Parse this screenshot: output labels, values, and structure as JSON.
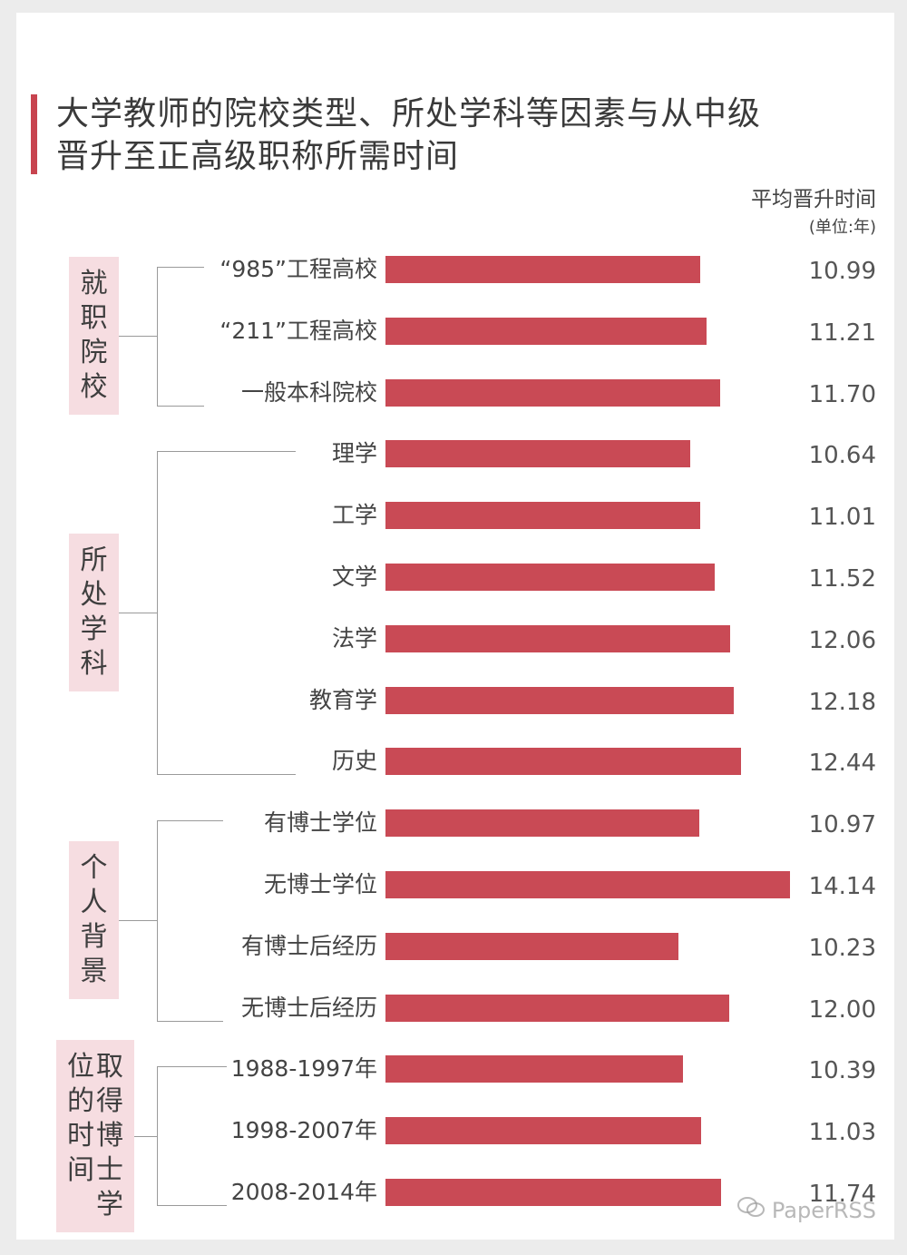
{
  "title_line1": "大学教师的院校类型、所处学科等因素与从中级",
  "title_line2": "晋升至正高级职称所需时间",
  "unit_line1": "平均晋升时间",
  "unit_line2": "(单位:年)",
  "watermark": "PaperRSS",
  "colors": {
    "bar": "#c94a55",
    "accent": "#c8444f",
    "group_bg": "#f6dde1"
  },
  "chart_data": {
    "type": "bar",
    "orientation": "horizontal",
    "title": "大学教师的院校类型、所处学科等因素与从中级晋升至正高级职称所需时间",
    "unit": "平均晋升时间 (单位:年)",
    "xlim": [
      0,
      15
    ],
    "groups": [
      {
        "name": "就职院校",
        "categories": [
          "“985”工程高校",
          "“211”工程高校",
          "一般本科院校"
        ],
        "values": [
          10.99,
          11.21,
          11.7
        ],
        "labels": [
          "10.99",
          "11.21",
          "11.70"
        ]
      },
      {
        "name": "所处学科",
        "categories": [
          "理学",
          "工学",
          "文学",
          "法学",
          "教育学",
          "历史"
        ],
        "values": [
          10.64,
          11.01,
          11.52,
          12.06,
          12.18,
          12.44
        ],
        "labels": [
          "10.64",
          "11.01",
          "11.52",
          "12.06",
          "12.18",
          "12.44"
        ]
      },
      {
        "name": "个人背景",
        "categories": [
          "有博士学位",
          "无博士学位",
          "有博士后经历",
          "无博士后经历"
        ],
        "values": [
          10.97,
          14.14,
          10.23,
          12.0
        ],
        "labels": [
          "10.97",
          "14.14",
          "10.23",
          "12.00"
        ]
      },
      {
        "name": "取得博士学位的时间",
        "categories": [
          "1988-1997年",
          "1998-2007年",
          "2008-2014年"
        ],
        "values": [
          10.39,
          11.03,
          11.74
        ],
        "labels": [
          "10.39",
          "11.03",
          "11.74"
        ]
      }
    ]
  }
}
